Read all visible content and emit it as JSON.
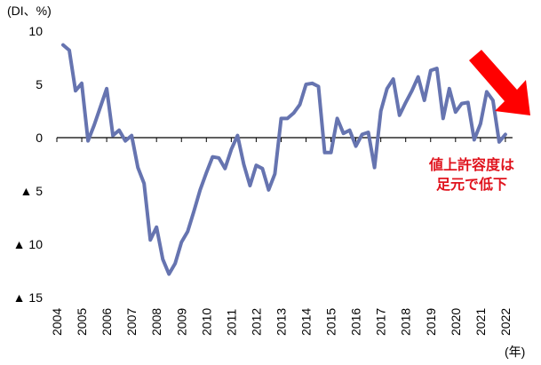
{
  "chart_data": {
    "type": "line",
    "title": "",
    "ylabel": "(DI、%)",
    "xlabel": "(年)",
    "ylim": [
      -15,
      10
    ],
    "yticks": [
      10,
      5,
      0,
      -5,
      -10,
      -15
    ],
    "ytick_labels": [
      "10",
      "5",
      "0",
      "▲ 5",
      "▲ 10",
      "▲ 15"
    ],
    "x_tick_labels": [
      "2004",
      "2005",
      "2006",
      "2007",
      "2008",
      "2009",
      "2010",
      "2011",
      "2012",
      "2013",
      "2014",
      "2015",
      "2016",
      "2017",
      "2018",
      "2019",
      "2020",
      "2021",
      "2022"
    ],
    "grid": false,
    "legend": null,
    "frequency": "quarterly",
    "series": [
      {
        "name": "値上許容度 DI",
        "color": "#6674b0",
        "x_start": 2004.25,
        "x_step": 0.25,
        "values": [
          8.7,
          8.2,
          4.4,
          5.1,
          -0.3,
          1.2,
          2.9,
          4.6,
          0.2,
          0.7,
          -0.3,
          0.2,
          -2.8,
          -4.3,
          -9.6,
          -8.4,
          -11.4,
          -12.8,
          -11.8,
          -9.8,
          -8.8,
          -6.9,
          -4.9,
          -3.3,
          -1.8,
          -1.9,
          -2.9,
          -1.1,
          0.2,
          -2.5,
          -4.5,
          -2.6,
          -2.9,
          -4.9,
          -3.4,
          1.8,
          1.8,
          2.3,
          3.1,
          5.0,
          5.1,
          4.8,
          -1.4,
          -1.4,
          1.8,
          0.4,
          0.7,
          -0.8,
          0.3,
          0.5,
          -2.8,
          2.5,
          4.6,
          5.5,
          2.1,
          3.3,
          4.4,
          5.7,
          3.5,
          6.3,
          6.5,
          1.8,
          4.6,
          2.4,
          3.2,
          3.3,
          -0.2,
          1.3,
          4.3,
          3.5,
          -0.4,
          0.3
        ]
      }
    ],
    "annotations": [
      {
        "type": "text",
        "text": "値上許容度は 足元で低下",
        "color": "#e0141e"
      },
      {
        "type": "arrow",
        "direction": "down-right",
        "color": "#ff0000"
      }
    ]
  },
  "labels": {
    "y_unit": "(DI、%)",
    "x_unit": "(年)",
    "annotation_line1": "値上許容度は",
    "annotation_line2": "足元で低下"
  },
  "colors": {
    "line": "#6674b0",
    "axis": "#000000",
    "annotation_text": "#e0141e",
    "arrow": "#ff0000"
  }
}
